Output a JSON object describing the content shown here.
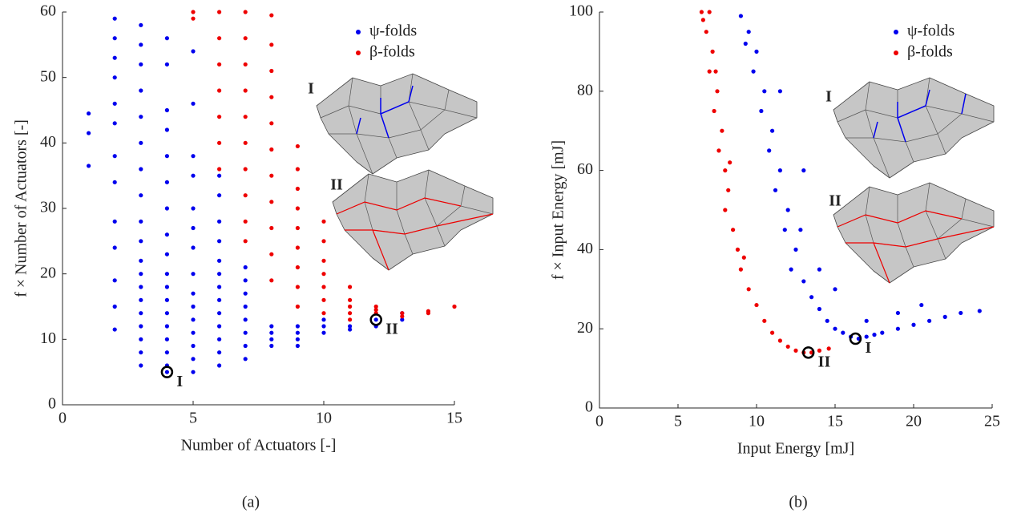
{
  "chart_data": [
    {
      "type": "scatter",
      "caption": "(a)",
      "xlabel": "Number of Actuators [-]",
      "ylabel": "f × Number of Actuators [-]",
      "xlim": [
        0,
        15
      ],
      "ylim": [
        0,
        60
      ],
      "xticks": [
        0,
        5,
        10,
        15
      ],
      "yticks": [
        0,
        10,
        20,
        30,
        40,
        50,
        60
      ],
      "legend": "upper right",
      "inset_labels": [
        "I",
        "II"
      ],
      "series": [
        {
          "name": "ψ-folds",
          "color": "#0000ee",
          "x": [
            1,
            1,
            1,
            2,
            2,
            2,
            2,
            2,
            2,
            2,
            2,
            2,
            2,
            2,
            2,
            2,
            3,
            3,
            3,
            3,
            3,
            3,
            3,
            3,
            3,
            3,
            3,
            3,
            3,
            3,
            3,
            3,
            3,
            3,
            3,
            4,
            4,
            4,
            4,
            4,
            4,
            4,
            4,
            4,
            4,
            4,
            4,
            4,
            4,
            4,
            4,
            4,
            4,
            5,
            5,
            5,
            5,
            5,
            5,
            5,
            5,
            5,
            5,
            5,
            5,
            5,
            5,
            5,
            6,
            6,
            6,
            6,
            6,
            6,
            6,
            6,
            6,
            6,
            6,
            6,
            6,
            7,
            7,
            7,
            7,
            7,
            7,
            7,
            7,
            8,
            8,
            8,
            8,
            9,
            9,
            9,
            9,
            10,
            10,
            10,
            11,
            11,
            12,
            12,
            13,
            13
          ],
          "values": [
            36.5,
            41.5,
            44.5,
            11.5,
            15,
            19,
            24,
            28,
            34,
            38,
            43,
            46,
            50,
            53,
            56,
            59,
            6,
            8,
            10,
            12,
            14,
            16,
            18,
            20,
            22,
            25,
            28,
            32,
            36,
            40,
            44,
            48,
            52,
            55,
            58,
            5,
            6,
            8,
            10,
            12,
            14,
            16,
            18,
            20,
            23,
            26,
            30,
            34,
            38,
            42,
            45,
            52,
            56,
            5,
            7,
            9,
            11,
            13,
            15,
            17,
            20,
            24,
            27,
            30,
            35,
            38,
            46,
            54,
            6,
            8,
            10,
            12,
            14,
            16,
            18,
            20,
            22,
            25,
            28,
            32,
            35,
            7,
            9,
            11,
            13,
            15,
            17,
            19,
            21,
            9,
            10,
            11,
            12,
            9,
            10,
            11,
            12,
            11,
            12,
            13,
            11.5,
            12,
            12,
            13,
            13,
            14
          ]
        },
        {
          "name": "β-folds",
          "color": "#ee0000",
          "x": [
            5,
            5,
            6,
            6,
            6,
            6,
            6,
            6,
            6,
            7,
            7,
            7,
            7,
            7,
            7,
            7,
            7,
            7,
            7,
            8,
            8,
            8,
            8,
            8,
            8,
            8,
            8,
            8,
            8,
            8,
            9,
            9,
            9,
            9,
            9,
            9,
            9,
            9,
            9,
            10,
            10,
            10,
            10,
            10,
            10,
            10,
            11,
            11,
            11,
            11,
            11,
            12,
            12,
            12,
            13,
            13,
            14,
            14,
            15
          ],
          "values": [
            59,
            60,
            36,
            40,
            44,
            48,
            52,
            56,
            60,
            25,
            28,
            32,
            36,
            40,
            44,
            48,
            52,
            56,
            60,
            19,
            23,
            27,
            31,
            35,
            39,
            43,
            47,
            51,
            55,
            59.5,
            15,
            18,
            21,
            24,
            27,
            30,
            33,
            36,
            39.5,
            14,
            16,
            18,
            20,
            22,
            25,
            28,
            13,
            14,
            15,
            16,
            18,
            14,
            14.5,
            15,
            13.5,
            14,
            14,
            14.3,
            15
          ]
        }
      ],
      "annotations": [
        {
          "x": 4,
          "y": 5,
          "label": "I"
        },
        {
          "x": 12,
          "y": 13,
          "label": "II"
        }
      ]
    },
    {
      "type": "scatter",
      "caption": "(b)",
      "xlabel": "Input Energy [mJ]",
      "ylabel": "f × Input Energy [mJ]",
      "xlim": [
        0,
        25
      ],
      "ylim": [
        0,
        100
      ],
      "xticks": [
        0,
        5,
        10,
        15,
        20,
        25
      ],
      "yticks": [
        0,
        20,
        40,
        60,
        80,
        100
      ],
      "legend": "upper right",
      "inset_labels": [
        "I",
        "II"
      ],
      "series": [
        {
          "name": "ψ-folds",
          "color": "#0000ee",
          "x": [
            9,
            9.5,
            10,
            9.8,
            10.5,
            10.3,
            11,
            10.8,
            11.5,
            11.2,
            12,
            11.8,
            12.5,
            12.2,
            13,
            13.5,
            14,
            14.5,
            15,
            15.5,
            16,
            16.5,
            17,
            17.5,
            18,
            19,
            20,
            21,
            22,
            23,
            24.2,
            12.8,
            14,
            13,
            15,
            17,
            19,
            20.5,
            9.3,
            11.5
          ],
          "values": [
            99,
            95,
            90,
            85,
            80,
            75,
            70,
            65,
            60,
            55,
            50,
            45,
            40,
            35,
            32,
            28,
            25,
            22,
            20,
            19,
            18,
            17.5,
            18,
            18.5,
            19,
            20,
            21,
            22,
            23,
            24,
            24.5,
            45,
            35,
            60,
            30,
            22,
            24,
            26,
            92,
            80
          ]
        },
        {
          "name": "β-folds",
          "color": "#ee0000",
          "x": [
            6.5,
            7,
            6.8,
            7.2,
            7,
            7.5,
            7.3,
            7.8,
            7.6,
            8,
            8.2,
            8,
            8.5,
            8.8,
            9,
            9.5,
            10,
            10.5,
            11,
            11.5,
            12,
            12.5,
            13,
            13.5,
            14,
            14.6,
            6.6,
            7.4,
            8.3,
            9.2
          ],
          "values": [
            100,
            100,
            95,
            90,
            85,
            80,
            75,
            70,
            65,
            60,
            55,
            50,
            45,
            40,
            35,
            30,
            26,
            22,
            19,
            17,
            15.5,
            14.5,
            14,
            14,
            14.5,
            15,
            98,
            85,
            62,
            38
          ]
        }
      ],
      "annotations": [
        {
          "x": 16.3,
          "y": 17.5,
          "label": "I"
        },
        {
          "x": 13.3,
          "y": 14,
          "label": "II"
        }
      ]
    }
  ]
}
